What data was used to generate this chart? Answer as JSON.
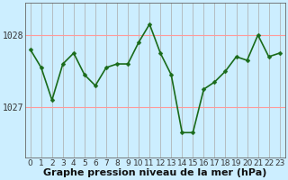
{
  "x": [
    0,
    1,
    2,
    3,
    4,
    5,
    6,
    7,
    8,
    9,
    10,
    11,
    12,
    13,
    14,
    15,
    16,
    17,
    18,
    19,
    20,
    21,
    22,
    23
  ],
  "y": [
    1027.8,
    1027.55,
    1027.1,
    1027.6,
    1027.75,
    1027.45,
    1027.3,
    1027.55,
    1027.6,
    1027.6,
    1027.9,
    1028.15,
    1027.75,
    1027.45,
    1026.65,
    1026.65,
    1027.25,
    1027.35,
    1027.5,
    1027.7,
    1027.65,
    1028.0,
    1027.7,
    1027.75
  ],
  "line_color": "#1a6b1a",
  "marker": "D",
  "marker_size": 2.5,
  "bg_color": "#cceeff",
  "vgrid_color": "#aaaaaa",
  "hgrid_color": "#ff9999",
  "yticks": [
    1027.0,
    1028.0
  ],
  "xlim": [
    -0.5,
    23.5
  ],
  "ylim": [
    1026.3,
    1028.45
  ],
  "xlabel": "Graphe pression niveau de la mer (hPa)",
  "xlabel_fontsize": 8,
  "tick_fontsize": 7,
  "line_width": 1.2
}
